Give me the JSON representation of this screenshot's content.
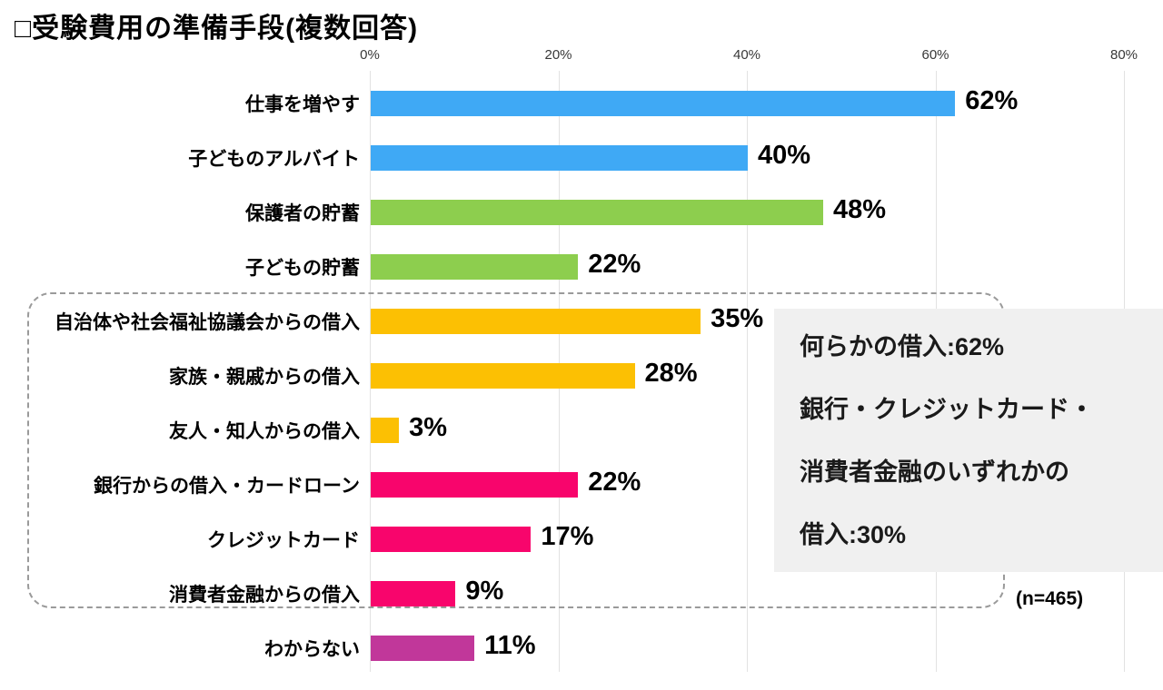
{
  "title": "□受験費用の準備手段(複数回答)",
  "chart_data": {
    "type": "bar",
    "orientation": "horizontal",
    "title": "受験費用の準備手段(複数回答)",
    "categories": [
      "仕事を増やす",
      "子どものアルバイト",
      "保護者の貯蓄",
      "子どもの貯蓄",
      "自治体や社会福祉協議会からの借入",
      "家族・親戚からの借入",
      "友人・知人からの借入",
      "銀行からの借入・カードローン",
      "クレジットカード",
      "消費者金融からの借入",
      "わからない"
    ],
    "values": [
      62,
      40,
      48,
      22,
      35,
      28,
      3,
      22,
      17,
      9,
      11
    ],
    "value_labels": [
      "62%",
      "40%",
      "48%",
      "22%",
      "35%",
      "28%",
      "3%",
      "22%",
      "17%",
      "9%",
      "11%"
    ],
    "bar_colors": [
      "#3fa9f5",
      "#3fa9f5",
      "#8dce4e",
      "#8dce4e",
      "#fcc003",
      "#fcc003",
      "#fcc003",
      "#f8056c",
      "#f8056c",
      "#f8056c",
      "#c1379a"
    ],
    "x_ticks": [
      "0%",
      "20%",
      "40%",
      "60%",
      "80%"
    ],
    "xlim": [
      0,
      80
    ],
    "grid": true,
    "legend": "none",
    "grouped_rows_note": "rows 5-10 (borrowing items) are enclosed by a dashed rounded rectangle"
  },
  "annotation_box": {
    "background": "#f0f0f0",
    "lines": [
      "何らかの借入:62%",
      "銀行・クレジットカード・",
      "消費者金融のいずれかの",
      "借入:30%"
    ]
  },
  "sample_size": "(n=465)",
  "colors": {
    "blue": "#3fa9f5",
    "green": "#8dce4e",
    "amber": "#fcc003",
    "pink": "#f8056c",
    "purple": "#c1379a",
    "gridline": "#e2e2e2",
    "dashed_border": "#9a9a9a",
    "note_background": "#f0f0f0"
  }
}
